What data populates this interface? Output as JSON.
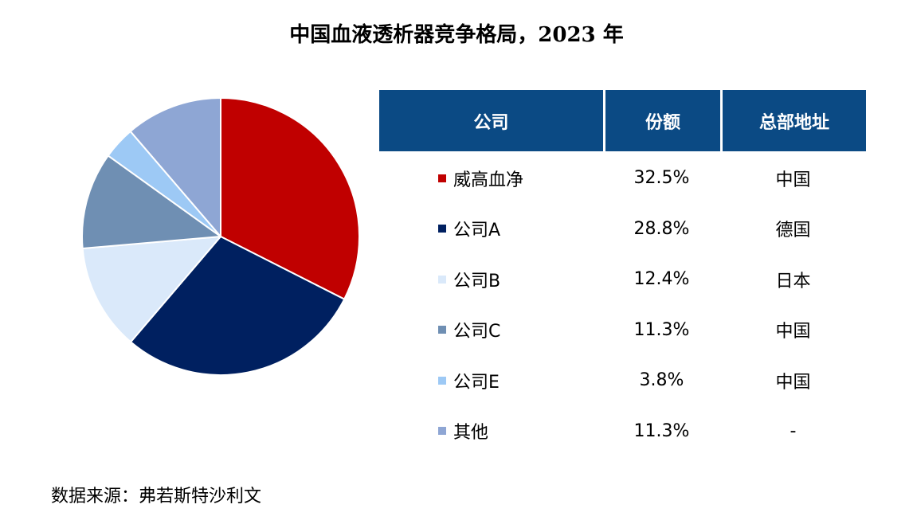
{
  "chart_data": {
    "type": "pie",
    "title": "中国血液透析器竞争格局，2023 年",
    "slices": [
      {
        "name": "威高血净",
        "value": 32.5,
        "label": "32.5%",
        "hq": "中国",
        "color": "#c00000"
      },
      {
        "name": "公司A",
        "value": 28.8,
        "label": "28.8%",
        "hq": "德国",
        "color": "#002060"
      },
      {
        "name": "公司B",
        "value": 12.4,
        "label": "12.4%",
        "hq": "日本",
        "color": "#dae9fa"
      },
      {
        "name": "公司C",
        "value": 11.3,
        "label": "11.3%",
        "hq": "中国",
        "color": "#6f8fb3"
      },
      {
        "name": "公司E",
        "value": 3.8,
        "label": "3.8%",
        "hq": "中国",
        "color": "#9dc9f5"
      },
      {
        "name": "其他",
        "value": 11.3,
        "label": "11.3%",
        "hq": "-",
        "color": "#8ea6d4"
      }
    ],
    "start_angle": "12 o'clock",
    "direction": "clockwise",
    "legend": "table-right"
  },
  "table": {
    "header_company": "公司",
    "header_share": "份额",
    "header_hq": "总部地址",
    "header_color": "#0b4a84"
  },
  "source": "数据来源：弗若斯特沙利文"
}
